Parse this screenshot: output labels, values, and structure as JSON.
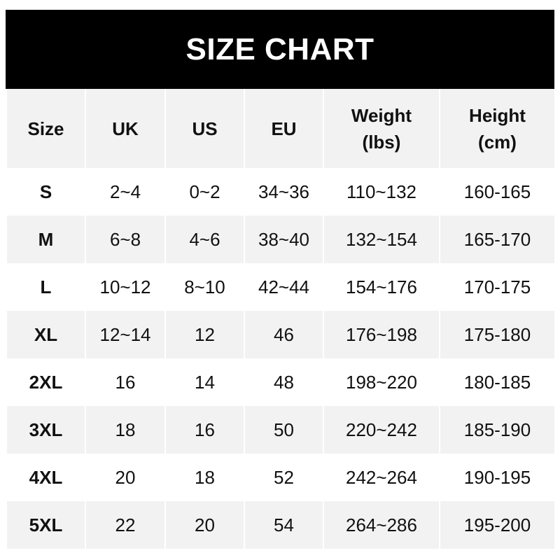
{
  "header": {
    "title": "SIZE CHART"
  },
  "table": {
    "columns": [
      "Size",
      "UK",
      "US",
      "EU",
      "Weight\n(lbs)",
      "Height\n(cm)"
    ],
    "rows": [
      [
        "S",
        "2~4",
        "0~2",
        "34~36",
        "110~132",
        "160-165"
      ],
      [
        "M",
        "6~8",
        "4~6",
        "38~40",
        "132~154",
        "165-170"
      ],
      [
        "L",
        "10~12",
        "8~10",
        "42~44",
        "154~176",
        "170-175"
      ],
      [
        "XL",
        "12~14",
        "12",
        "46",
        "176~198",
        "175-180"
      ],
      [
        "2XL",
        "16",
        "14",
        "48",
        "198~220",
        "180-185"
      ],
      [
        "3XL",
        "18",
        "16",
        "50",
        "220~242",
        "185-190"
      ],
      [
        "4XL",
        "20",
        "18",
        "52",
        "242~264",
        "190-195"
      ],
      [
        "5XL",
        "22",
        "20",
        "54",
        "264~286",
        "195-200"
      ]
    ]
  }
}
